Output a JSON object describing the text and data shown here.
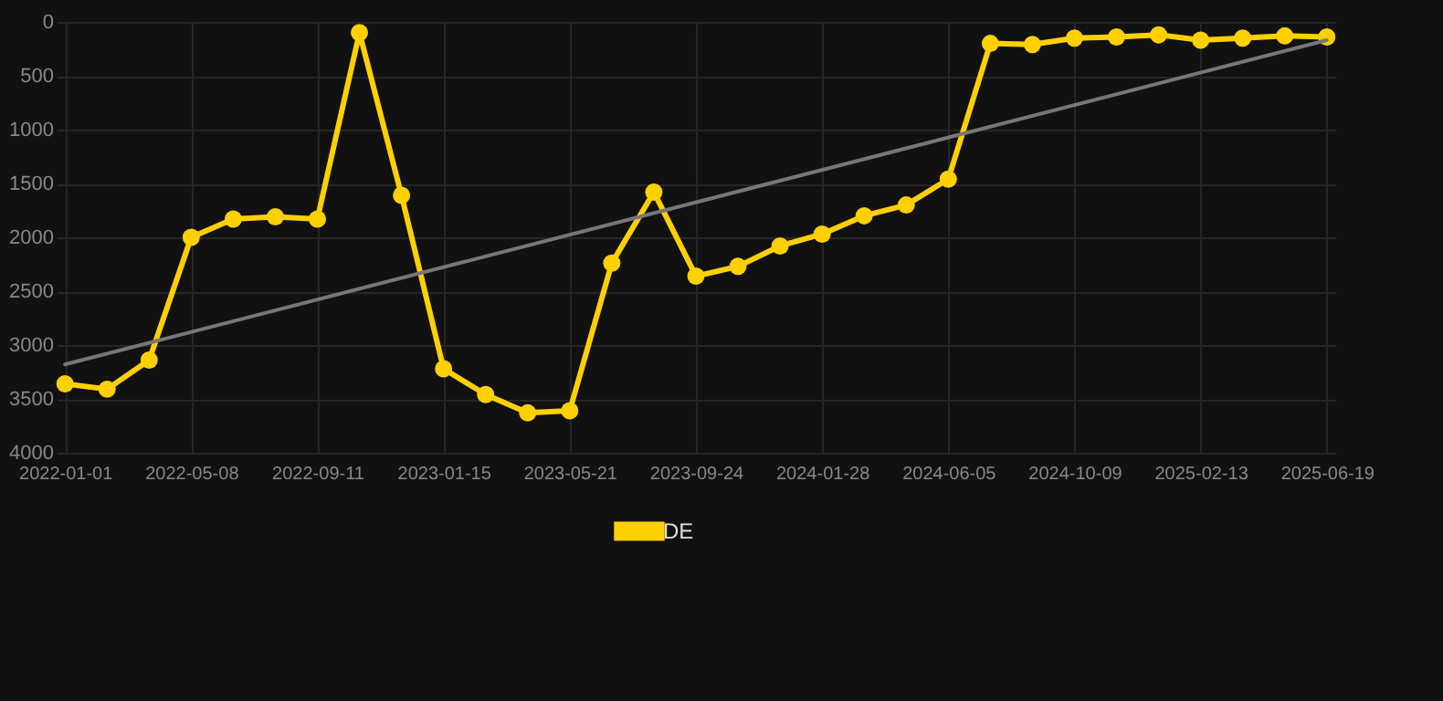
{
  "chart_data": {
    "type": "line",
    "categories": [
      "2022-01-01",
      null,
      null,
      "2022-05-08",
      null,
      null,
      "2022-09-11",
      null,
      null,
      "2023-01-15",
      null,
      null,
      "2023-05-21",
      null,
      null,
      "2023-09-24",
      null,
      null,
      "2024-01-28",
      null,
      null,
      "2024-06-05",
      null,
      null,
      "2024-10-09",
      null,
      null,
      "2025-02-13",
      null,
      null,
      "2025-06-19"
    ],
    "series": [
      {
        "name": "DE",
        "color": "#ffd000",
        "values": [
          3360,
          3410,
          3140,
          2000,
          1830,
          1810,
          1830,
          100,
          1610,
          3220,
          3460,
          3630,
          3610,
          2240,
          1580,
          2360,
          2270,
          2080,
          1970,
          1800,
          1700,
          1460,
          200,
          210,
          150,
          140,
          120,
          170,
          150,
          130,
          140
        ]
      },
      {
        "type": "line",
        "color": "#777777",
        "values": [
          3180,
          null,
          null,
          null,
          null,
          null,
          null,
          null,
          null,
          null,
          null,
          null,
          null,
          null,
          null,
          null,
          null,
          null,
          null,
          null,
          null,
          null,
          null,
          null,
          null,
          null,
          null,
          null,
          null,
          null,
          170
        ],
        "marker": "none"
      }
    ],
    "ylim": [
      4000,
      0
    ],
    "yticks": [
      0,
      500,
      1000,
      1500,
      2000,
      2500,
      3000,
      3500,
      4000
    ],
    "grid": true,
    "legend": "bottom",
    "marker": "circle"
  }
}
